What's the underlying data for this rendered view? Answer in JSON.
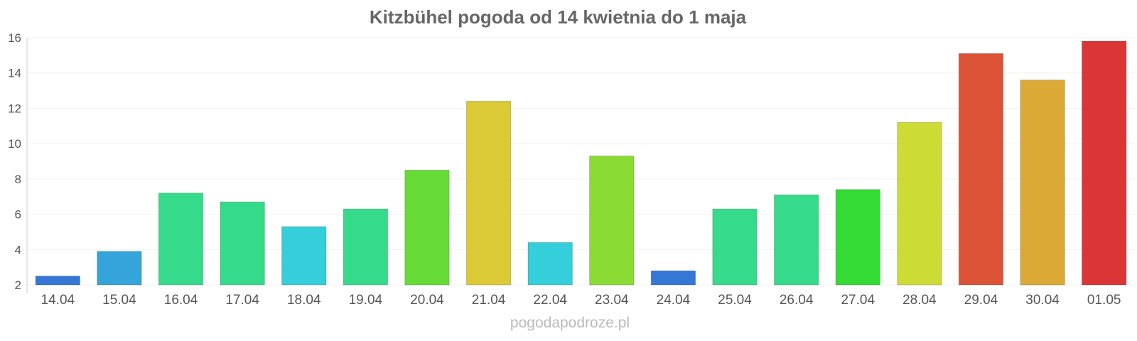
{
  "chart_data": {
    "type": "bar",
    "title": "Kitzbühel pogoda od 14 kwietnia do 1 maja",
    "xlabel": "",
    "ylabel": "",
    "ylim": [
      2,
      16
    ],
    "yticks": [
      2,
      4,
      6,
      8,
      10,
      12,
      14,
      16
    ],
    "grid": true,
    "legend": "none",
    "categories": [
      "14.04",
      "15.04",
      "16.04",
      "17.04",
      "18.04",
      "19.04",
      "20.04",
      "21.04",
      "22.04",
      "23.04",
      "24.04",
      "25.04",
      "26.04",
      "27.04",
      "28.04",
      "29.04",
      "30.04",
      "01.05"
    ],
    "values": [
      2.5,
      3.9,
      7.2,
      6.7,
      5.3,
      6.3,
      8.5,
      12.4,
      4.4,
      9.3,
      2.8,
      6.3,
      7.1,
      7.4,
      11.2,
      15.1,
      13.6,
      15.8
    ],
    "colors": [
      "#3577d6",
      "#35a4db",
      "#35db8a",
      "#35db8a",
      "#35cedb",
      "#35db8a",
      "#66db35",
      "#dbc935",
      "#35cedb",
      "#8bdb35",
      "#3577d6",
      "#35db8a",
      "#35db8a",
      "#35db35",
      "#cddb35",
      "#db5235",
      "#dba935",
      "#db3535"
    ]
  },
  "watermark": "pogodapodroze.pl"
}
